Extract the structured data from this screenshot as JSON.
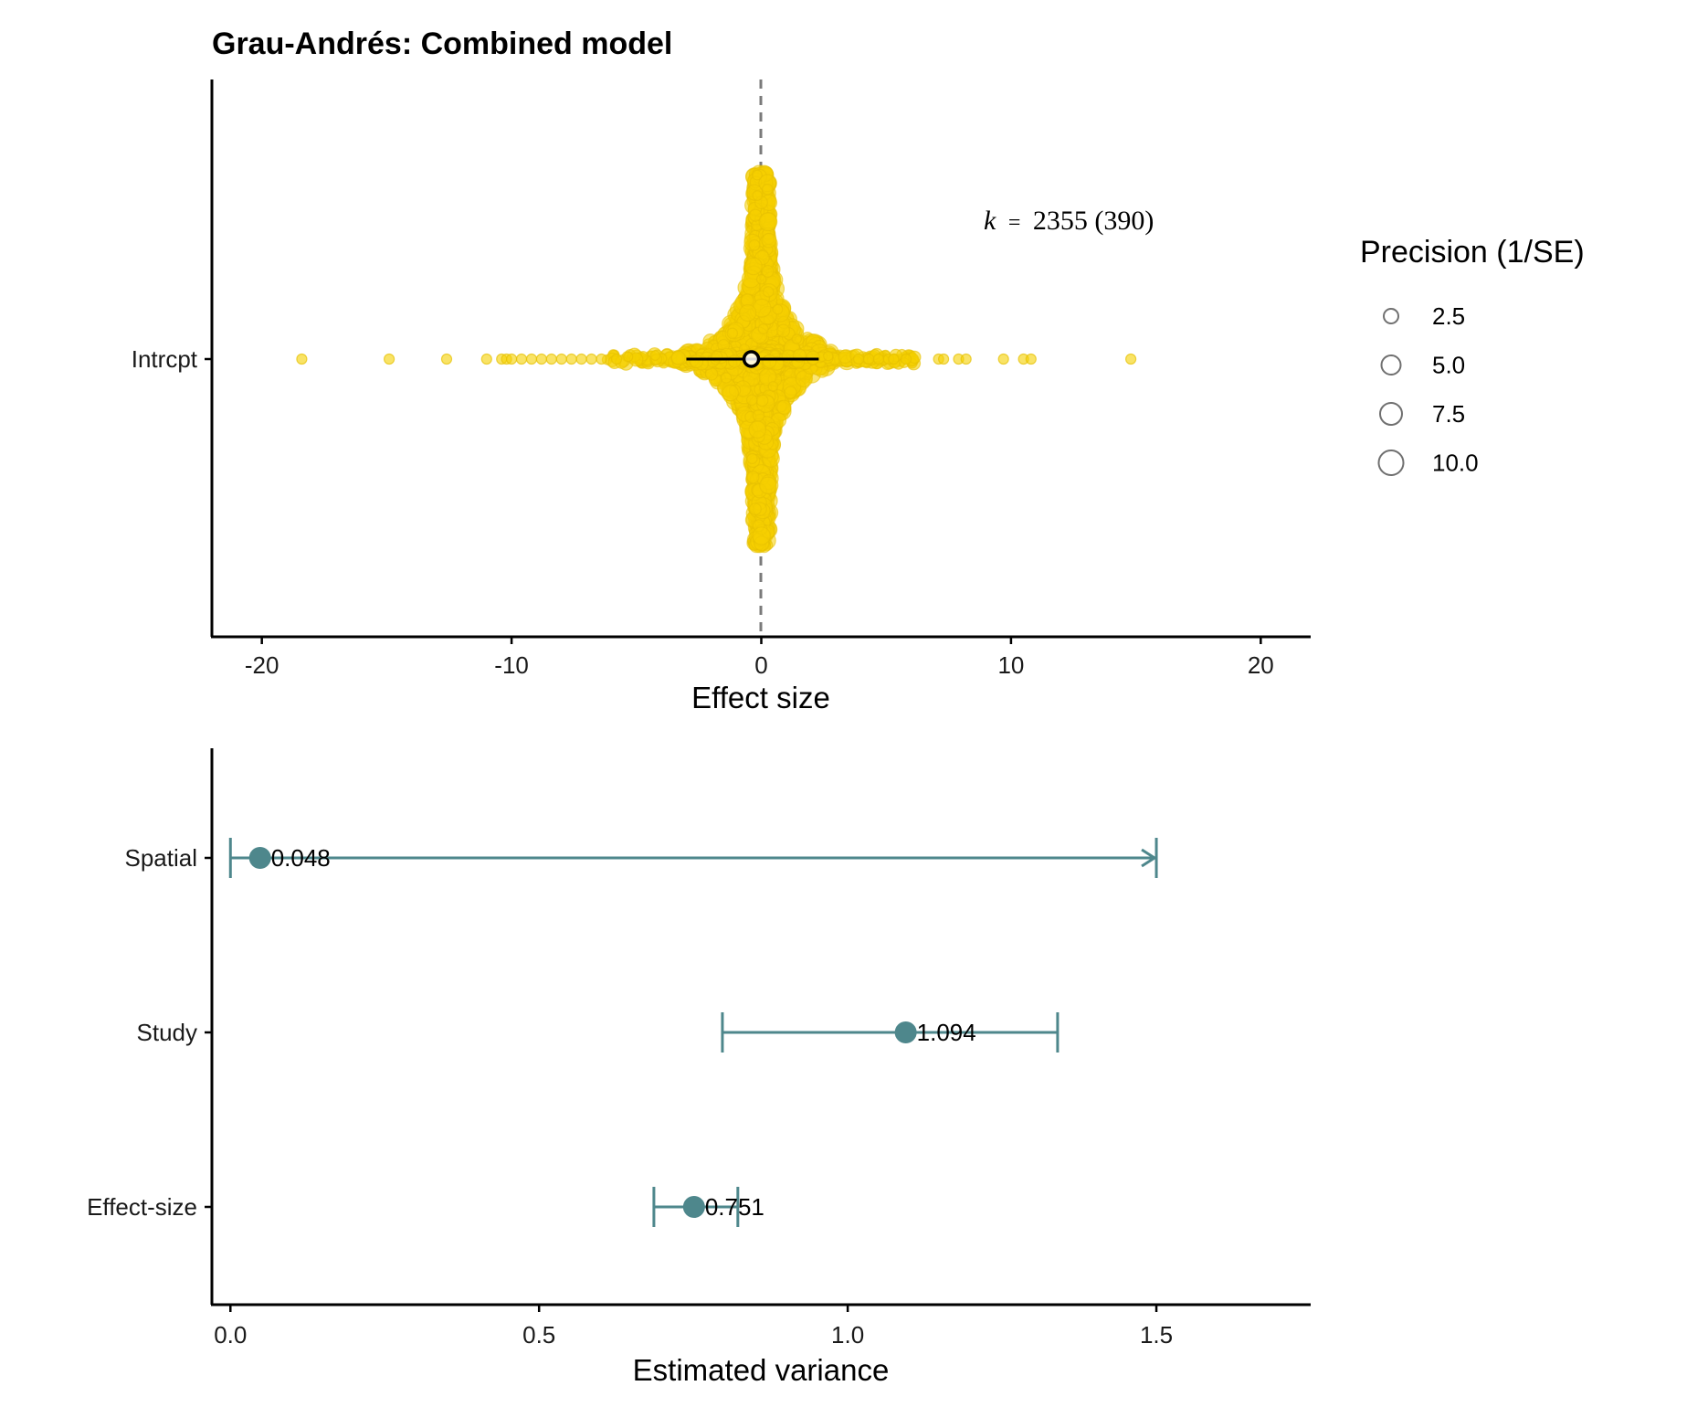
{
  "chart_data": [
    {
      "type": "scatter",
      "title": "Grau-Andrés: Combined model",
      "xlabel": "Effect size",
      "ylabel": "",
      "xlim": [
        -22,
        22
      ],
      "x_ticks": [
        -20,
        -10,
        0,
        10,
        20
      ],
      "y_categories": [
        "Intrcpt"
      ],
      "reference_line_x": 0,
      "annotation": {
        "k_symbol": "k",
        "equals": "=",
        "text": "2355 (390)"
      },
      "point_color": "#f5d000",
      "estimate": {
        "label": "Intrcpt",
        "value": -0.4,
        "ci": [
          -3.0,
          2.3
        ]
      },
      "outlier_points": [
        -18.4,
        -14.9,
        -12.6,
        -11.0,
        -10.4,
        -10.2,
        -10.0,
        -9.6,
        -9.2,
        -8.8,
        -8.4,
        -8.0,
        -7.6,
        -7.2,
        -6.8,
        -6.4,
        3.9,
        4.3,
        4.7,
        5.1,
        5.3,
        5.8,
        7.1,
        7.3,
        7.9,
        8.2,
        9.7,
        10.5,
        10.8,
        14.8
      ],
      "legend": {
        "title": "Precision (1/SE)",
        "entries": [
          "2.5",
          "5.0",
          "7.5",
          "10.0"
        ],
        "position": "right"
      }
    },
    {
      "type": "dot-errorbar",
      "xlabel": "Estimated variance",
      "ylabel": "",
      "xlim": [
        -0.03,
        1.75
      ],
      "x_ticks": [
        "0.0",
        "0.5",
        "1.0",
        "1.5"
      ],
      "series_color": "#4e878c",
      "categories": [
        "Spatial",
        "Study",
        "Effect-size"
      ],
      "values": [
        0.048,
        1.094,
        0.751
      ],
      "value_labels": [
        "0.048",
        "1.094",
        "0.751"
      ],
      "ci_lower": [
        0.0,
        0.797,
        0.686
      ],
      "ci_upper": [
        1.5,
        1.34,
        0.822
      ],
      "ci_truncated": [
        true,
        false,
        false
      ]
    }
  ]
}
